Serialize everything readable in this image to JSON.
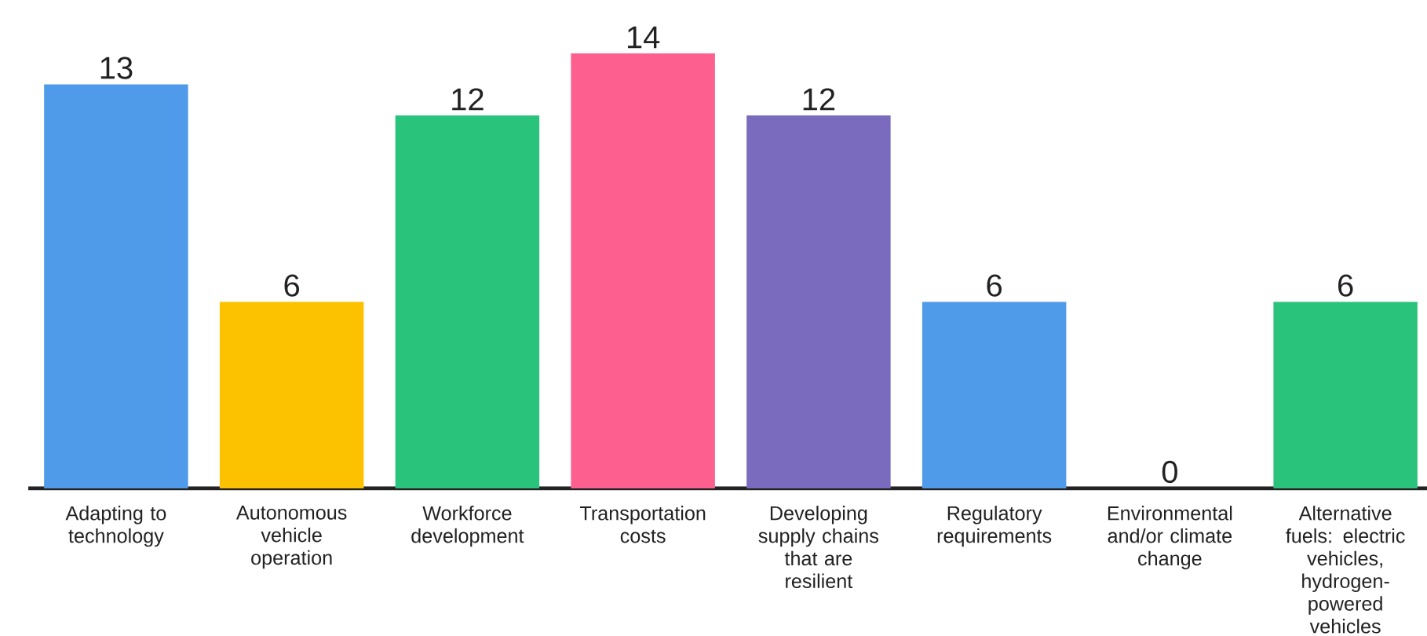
{
  "chart_data": {
    "type": "bar",
    "categories": [
      "Adapting to technology",
      "Autonomous vehicle operation",
      "Workforce development",
      "Transportation costs",
      "Developing supply chains that are resilient",
      "Regulatory requirements",
      "Environmental and/or climate change",
      "Alternative fuels: electric vehicles, hydrogen-powered vehicles"
    ],
    "values": [
      13,
      6,
      12,
      14,
      12,
      6,
      0,
      6
    ],
    "colors": [
      "#4f9bea",
      "#fcc200",
      "#2ac37c",
      "#fd5f8f",
      "#7b6bbf",
      "#4f9bea",
      "#4f9bea",
      "#2ac37c"
    ],
    "data_labels": true,
    "tick_labels": "x",
    "grid": false
  }
}
